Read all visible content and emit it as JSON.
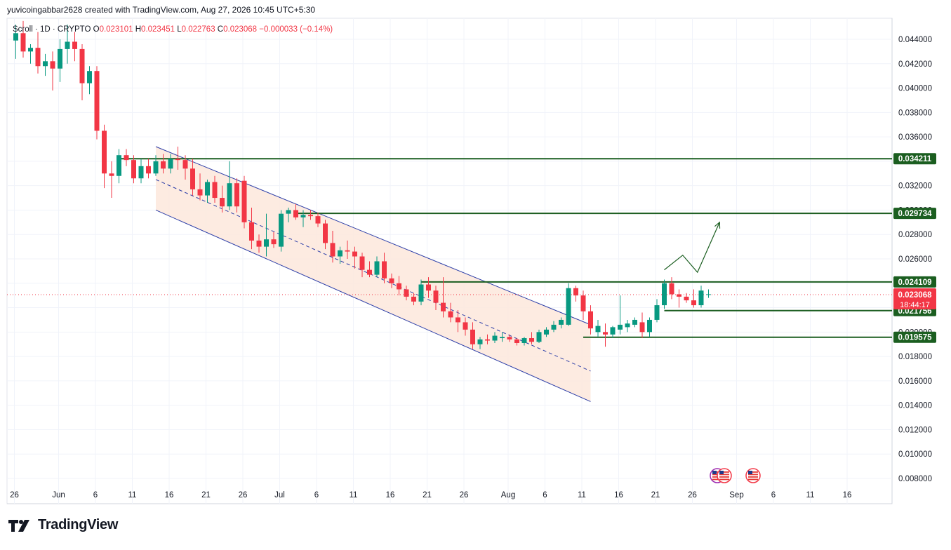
{
  "header": {
    "author_line": "yuvicoingabbar2628 created with TradingView.com, Aug 27, 2026 10:45 UTC+5:30"
  },
  "legend": {
    "symbol": "Scroll · 1D · CRYPTO",
    "o_label": "O",
    "o_value": "0.023101",
    "h_label": "H",
    "h_value": "0.023451",
    "l_label": "L",
    "l_value": "0.022763",
    "c_label": "C",
    "c_value": "0.023068",
    "change": "−0.000033 (−0.14%)"
  },
  "branding": {
    "logo_text": "TradingView"
  },
  "colors": {
    "up": "#089981",
    "down": "#f23645",
    "level_line": "#1b5e20",
    "channel_line": "#2c3ea8",
    "channel_fill": "#fde7dc",
    "badge_green": "#1b5e20",
    "badge_red": "#f23645",
    "arrow": "#1b5e20"
  },
  "chart_data": {
    "type": "candlestick",
    "ylim": [
      0.0075,
      0.0455
    ],
    "y_ticks": [
      "0.044000",
      "0.042000",
      "0.040000",
      "0.038000",
      "0.036000",
      "0.034000",
      "0.032000",
      "0.030000",
      "0.028000",
      "0.026000",
      "0.024000",
      "0.022000",
      "0.020000",
      "0.018000",
      "0.016000",
      "0.014000",
      "0.012000",
      "0.010000",
      "0.008000"
    ],
    "x_ticks": [
      "26",
      "Jun",
      "6",
      "11",
      "16",
      "21",
      "26",
      "Jul",
      "6",
      "11",
      "16",
      "21",
      "26",
      "Aug",
      "6",
      "11",
      "16",
      "21",
      "26",
      "Sep",
      "6",
      "11",
      "16"
    ],
    "x_tick_days": [
      0,
      6,
      11,
      16,
      21,
      26,
      31,
      36,
      41,
      46,
      51,
      56,
      61,
      67,
      72,
      77,
      82,
      87,
      92,
      98,
      103,
      108,
      113
    ],
    "price_levels": [
      {
        "label": "0.034211",
        "value": 0.034211,
        "from_day": 14
      },
      {
        "label": "0.029734",
        "value": 0.029734,
        "from_day": 38
      },
      {
        "label": "0.024109",
        "value": 0.024109,
        "from_day": 55
      },
      {
        "label": "0.021756",
        "value": 0.021756,
        "from_day": 88
      },
      {
        "label": "0.019575",
        "value": 0.019575,
        "from_day": 77
      }
    ],
    "current_price": {
      "label": "0.023068",
      "value": 0.023068,
      "countdown": "18:44:17"
    },
    "channel": {
      "upper": [
        [
          19,
          0.0352
        ],
        [
          78,
          0.0206
        ]
      ],
      "lower": [
        [
          19,
          0.03
        ],
        [
          78,
          0.0143
        ]
      ],
      "mid": [
        [
          19,
          0.0325
        ],
        [
          78,
          0.0168
        ]
      ]
    },
    "projection_arrow": [
      [
        88,
        0.0251
      ],
      [
        90.5,
        0.0263
      ],
      [
        92.5,
        0.0249
      ],
      [
        95.5,
        0.029
      ]
    ],
    "candles": [
      [
        0,
        0.0439,
        0.0452,
        0.0424,
        0.0445
      ],
      [
        1,
        0.0445,
        0.0455,
        0.0425,
        0.043
      ],
      [
        2,
        0.043,
        0.0436,
        0.042,
        0.0433
      ],
      [
        3,
        0.0433,
        0.0446,
        0.0412,
        0.0418
      ],
      [
        4,
        0.0418,
        0.0428,
        0.041,
        0.0422
      ],
      [
        5,
        0.0422,
        0.043,
        0.0398,
        0.0416
      ],
      [
        6,
        0.0416,
        0.044,
        0.0405,
        0.0432
      ],
      [
        7,
        0.0432,
        0.0452,
        0.042,
        0.0438
      ],
      [
        8,
        0.0438,
        0.0446,
        0.0422,
        0.0432
      ],
      [
        9,
        0.0432,
        0.0436,
        0.039,
        0.0404
      ],
      [
        10,
        0.0404,
        0.0418,
        0.0395,
        0.0414
      ],
      [
        11,
        0.0414,
        0.0418,
        0.0358,
        0.0365
      ],
      [
        12,
        0.0365,
        0.037,
        0.0318,
        0.033
      ],
      [
        13,
        0.033,
        0.034,
        0.031,
        0.0328
      ],
      [
        14,
        0.0328,
        0.035,
        0.0322,
        0.0345
      ],
      [
        15,
        0.0345,
        0.035,
        0.0336,
        0.0341
      ],
      [
        16,
        0.0341,
        0.0345,
        0.0322,
        0.0326
      ],
      [
        17,
        0.0326,
        0.0342,
        0.0322,
        0.0336
      ],
      [
        18,
        0.0336,
        0.0342,
        0.0326,
        0.033
      ],
      [
        19,
        0.033,
        0.0345,
        0.0328,
        0.034
      ],
      [
        20,
        0.034,
        0.0346,
        0.033,
        0.0334
      ],
      [
        21,
        0.0334,
        0.0346,
        0.033,
        0.0342
      ],
      [
        22,
        0.0342,
        0.0352,
        0.0333,
        0.0341
      ],
      [
        23,
        0.0341,
        0.0345,
        0.0325,
        0.0334
      ],
      [
        24,
        0.0334,
        0.0342,
        0.0312,
        0.0317
      ],
      [
        25,
        0.0317,
        0.033,
        0.0308,
        0.0312
      ],
      [
        26,
        0.0312,
        0.0325,
        0.0306,
        0.0323
      ],
      [
        27,
        0.0323,
        0.0328,
        0.0306,
        0.031
      ],
      [
        28,
        0.031,
        0.032,
        0.0298,
        0.0303
      ],
      [
        29,
        0.0303,
        0.034,
        0.03,
        0.0322
      ],
      [
        30,
        0.0322,
        0.0326,
        0.0298,
        0.0303
      ],
      [
        31,
        0.0324,
        0.0328,
        0.0285,
        0.029
      ],
      [
        32,
        0.029,
        0.0302,
        0.0268,
        0.0275
      ],
      [
        33,
        0.0275,
        0.028,
        0.0265,
        0.027
      ],
      [
        34,
        0.027,
        0.0297,
        0.0262,
        0.0276
      ],
      [
        35,
        0.0276,
        0.0282,
        0.0269,
        0.0272
      ],
      [
        36,
        0.027,
        0.03,
        0.0266,
        0.0297
      ],
      [
        37,
        0.0297,
        0.0302,
        0.029,
        0.03
      ],
      [
        38,
        0.03,
        0.0305,
        0.0292,
        0.0294
      ],
      [
        39,
        0.0294,
        0.03,
        0.0286,
        0.0296
      ],
      [
        40,
        0.0296,
        0.03,
        0.0292,
        0.0295
      ],
      [
        41,
        0.0295,
        0.0298,
        0.0286,
        0.0289
      ],
      [
        42,
        0.0289,
        0.0292,
        0.0268,
        0.0273
      ],
      [
        43,
        0.0273,
        0.0283,
        0.0257,
        0.0262
      ],
      [
        44,
        0.0262,
        0.027,
        0.0256,
        0.0267
      ],
      [
        45,
        0.0267,
        0.0275,
        0.026,
        0.0266
      ],
      [
        46,
        0.0266,
        0.027,
        0.0252,
        0.0262
      ],
      [
        47,
        0.0262,
        0.0265,
        0.0245,
        0.0251
      ],
      [
        48,
        0.0251,
        0.0258,
        0.0245,
        0.0247
      ],
      [
        49,
        0.0247,
        0.0262,
        0.0245,
        0.0258
      ],
      [
        50,
        0.0258,
        0.0265,
        0.024,
        0.0244
      ],
      [
        51,
        0.0244,
        0.0248,
        0.0236,
        0.024
      ],
      [
        52,
        0.024,
        0.0246,
        0.023,
        0.0235
      ],
      [
        53,
        0.0235,
        0.0238,
        0.0226,
        0.0229
      ],
      [
        54,
        0.0229,
        0.0232,
        0.0222,
        0.0225
      ],
      [
        55,
        0.0225,
        0.0243,
        0.0222,
        0.0239
      ],
      [
        56,
        0.0239,
        0.0245,
        0.0228,
        0.0234
      ],
      [
        57,
        0.0234,
        0.0238,
        0.0218,
        0.0224
      ],
      [
        58,
        0.0224,
        0.0245,
        0.0212,
        0.0217
      ],
      [
        59,
        0.0217,
        0.0224,
        0.0208,
        0.0212
      ],
      [
        60,
        0.0212,
        0.0218,
        0.02,
        0.0208
      ],
      [
        61,
        0.0208,
        0.0212,
        0.0197,
        0.0202
      ],
      [
        62,
        0.0202,
        0.0208,
        0.0186,
        0.019
      ],
      [
        63,
        0.019,
        0.0196,
        0.0186,
        0.0194
      ],
      [
        64,
        0.0194,
        0.0198,
        0.019,
        0.0193
      ],
      [
        65,
        0.0193,
        0.02,
        0.0191,
        0.0197
      ],
      [
        66,
        0.0195,
        0.02,
        0.0192,
        0.0196
      ],
      [
        67,
        0.0196,
        0.0198,
        0.0192,
        0.0194
      ],
      [
        68,
        0.0194,
        0.0195,
        0.0189,
        0.0191
      ],
      [
        69,
        0.0191,
        0.0196,
        0.0189,
        0.0195
      ],
      [
        70,
        0.0195,
        0.02,
        0.019,
        0.0192
      ],
      [
        71,
        0.0192,
        0.0202,
        0.0191,
        0.02
      ],
      [
        72,
        0.0198,
        0.0204,
        0.0196,
        0.0202
      ],
      [
        73,
        0.0202,
        0.0209,
        0.02,
        0.0206
      ],
      [
        74,
        0.0206,
        0.0212,
        0.0203,
        0.021
      ],
      [
        75,
        0.0206,
        0.024,
        0.0205,
        0.0236
      ],
      [
        76,
        0.0236,
        0.0238,
        0.0225,
        0.023
      ],
      [
        77,
        0.023,
        0.0234,
        0.021,
        0.0217
      ],
      [
        78,
        0.0217,
        0.0222,
        0.0198,
        0.0203
      ],
      [
        79,
        0.02,
        0.021,
        0.0196,
        0.0205
      ],
      [
        80,
        0.02,
        0.0207,
        0.0188,
        0.0198
      ],
      [
        81,
        0.0198,
        0.0205,
        0.0195,
        0.0204
      ],
      [
        82,
        0.0202,
        0.023,
        0.0198,
        0.0206
      ],
      [
        83,
        0.0204,
        0.021,
        0.02,
        0.0207
      ],
      [
        84,
        0.0206,
        0.0212,
        0.0204,
        0.021
      ],
      [
        85,
        0.0208,
        0.0216,
        0.0195,
        0.02
      ],
      [
        86,
        0.02,
        0.0212,
        0.0196,
        0.021
      ],
      [
        87,
        0.021,
        0.0227,
        0.0208,
        0.0222
      ],
      [
        88,
        0.0222,
        0.0243,
        0.0219,
        0.024
      ],
      [
        89,
        0.024,
        0.0245,
        0.0227,
        0.0231
      ],
      [
        90,
        0.0231,
        0.0235,
        0.022,
        0.0229
      ],
      [
        91,
        0.0229,
        0.0232,
        0.0224,
        0.0226
      ],
      [
        92,
        0.0226,
        0.0235,
        0.022,
        0.0222
      ],
      [
        93,
        0.0222,
        0.0238,
        0.022,
        0.0234
      ],
      [
        94,
        0.0231,
        0.0235,
        0.0228,
        0.0231
      ]
    ]
  }
}
